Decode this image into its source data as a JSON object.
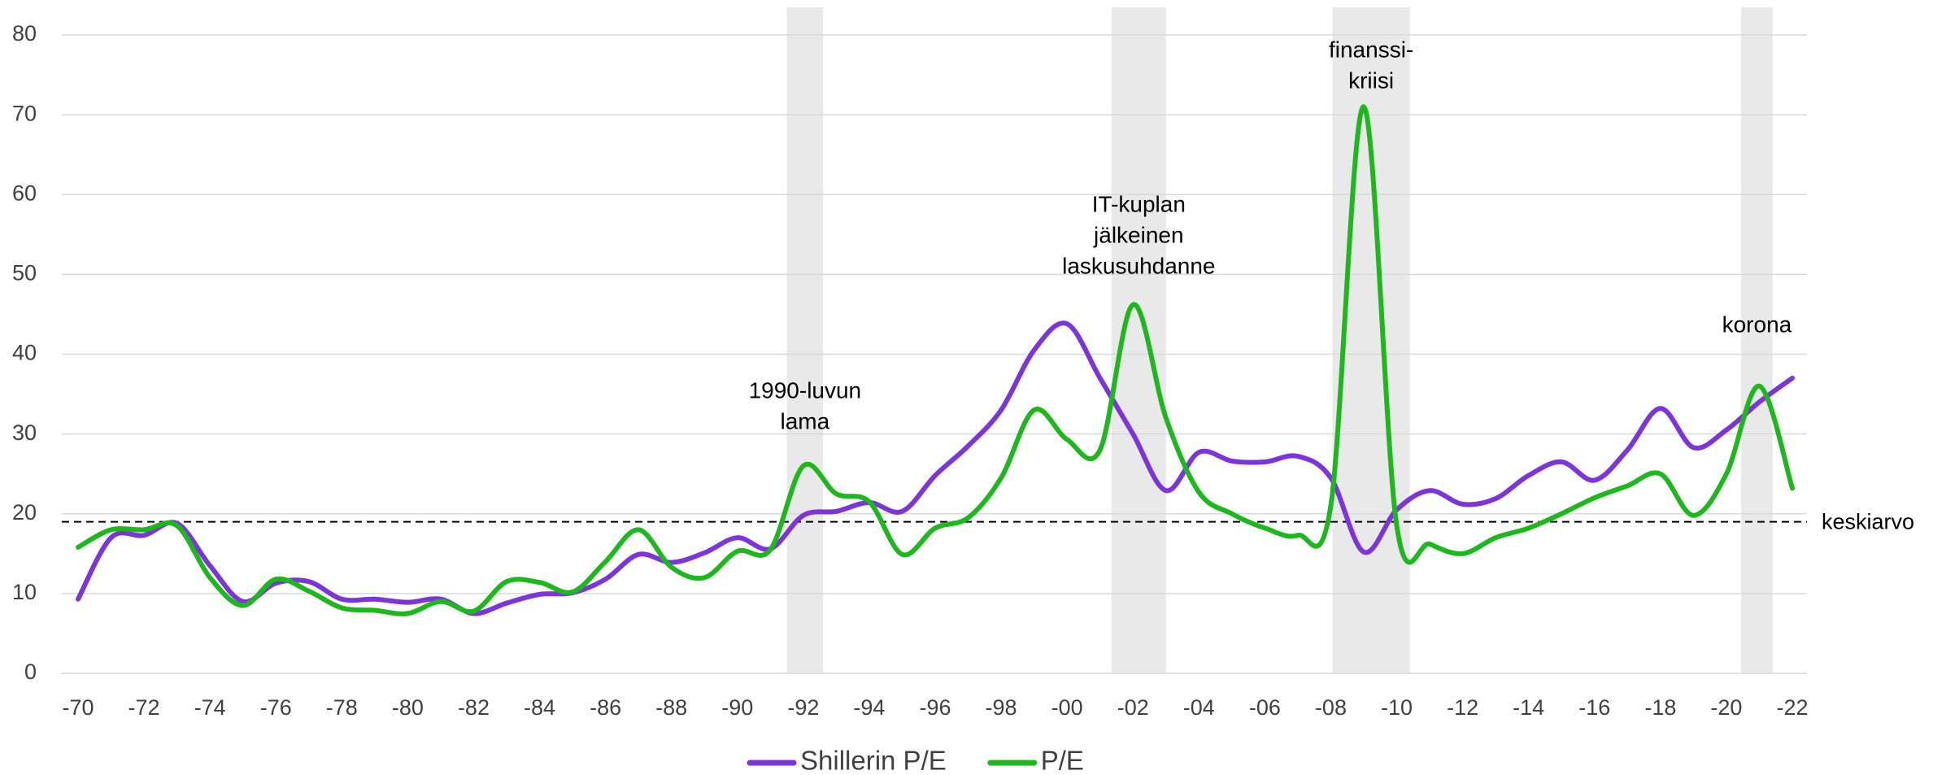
{
  "chart_data": {
    "type": "line",
    "x": [
      1970,
      1971,
      1972,
      1973,
      1974,
      1975,
      1976,
      1977,
      1978,
      1979,
      1980,
      1981,
      1982,
      1983,
      1984,
      1985,
      1986,
      1987,
      1988,
      1989,
      1990,
      1991,
      1992,
      1993,
      1994,
      1995,
      1996,
      1997,
      1998,
      1999,
      2000,
      2001,
      2002,
      2003,
      2004,
      2005,
      2006,
      2007,
      2008,
      2009,
      2010,
      2011,
      2012,
      2013,
      2014,
      2015,
      2016,
      2017,
      2018,
      2019,
      2020,
      2021,
      2022
    ],
    "series": [
      {
        "name": "Shillerin P/E",
        "color": "#7b35d9",
        "values": [
          9.3,
          17,
          17.3,
          18.8,
          13.5,
          9,
          11.3,
          11.5,
          9.3,
          9.3,
          8.9,
          9.3,
          7.5,
          8.8,
          9.9,
          10.1,
          11.8,
          14.9,
          13.9,
          15.1,
          17,
          15.6,
          19.8,
          20.3,
          21.4,
          20.3,
          24.8,
          28.5,
          33,
          40.5,
          43.8,
          37,
          30,
          22.9,
          27.7,
          26.6,
          26.5,
          27.2,
          24.5,
          15.2,
          20.5,
          22.9,
          21.2,
          21.9,
          24.8,
          26.5,
          24.2,
          28,
          33.2,
          28.3,
          30.5,
          34,
          37
        ]
      },
      {
        "name": "P/E",
        "color": "#1eb81e",
        "values": [
          15.8,
          18,
          18,
          18.5,
          12,
          8.5,
          11.8,
          10.3,
          8.2,
          7.9,
          7.5,
          9,
          7.8,
          11.5,
          11.4,
          10.2,
          14,
          18,
          13.3,
          12,
          15.3,
          15.5,
          26,
          22.5,
          21.5,
          14.9,
          18.2,
          19.5,
          24.5,
          33,
          29.3,
          28,
          46.2,
          32,
          22.7,
          20,
          18.2,
          17.3,
          21,
          71,
          18.5,
          16.2,
          15,
          17,
          18.2,
          20,
          22,
          23.5,
          25,
          19.8,
          25,
          36,
          23.2
        ]
      }
    ],
    "average": {
      "value": 19,
      "label": "keskiarvo"
    },
    "shaded_regions": [
      {
        "start": 1991.5,
        "end": 1992.6,
        "label": [
          "1990-luvun",
          "lama"
        ]
      },
      {
        "start": 2001.35,
        "end": 2003,
        "label": [
          "IT-kuplan",
          "jälkeinen",
          "laskusuhdanne"
        ]
      },
      {
        "start": 2008.05,
        "end": 2010.4,
        "label": [
          "finanssi-",
          "kriisi"
        ]
      },
      {
        "start": 2020.45,
        "end": 2021.4,
        "label": [
          "korona"
        ]
      }
    ],
    "xlim": [
      1970,
      2022
    ],
    "xticks": [
      {
        "value": 1970,
        "label": "-70"
      },
      {
        "value": 1972,
        "label": "-72"
      },
      {
        "value": 1974,
        "label": "-74"
      },
      {
        "value": 1976,
        "label": "-76"
      },
      {
        "value": 1978,
        "label": "-78"
      },
      {
        "value": 1980,
        "label": "-80"
      },
      {
        "value": 1982,
        "label": "-82"
      },
      {
        "value": 1984,
        "label": "-84"
      },
      {
        "value": 1986,
        "label": "-86"
      },
      {
        "value": 1988,
        "label": "-88"
      },
      {
        "value": 1990,
        "label": "-90"
      },
      {
        "value": 1992,
        "label": "-92"
      },
      {
        "value": 1994,
        "label": "-94"
      },
      {
        "value": 1996,
        "label": "-96"
      },
      {
        "value": 1998,
        "label": "-98"
      },
      {
        "value": 2000,
        "label": "-00"
      },
      {
        "value": 2002,
        "label": "-02"
      },
      {
        "value": 2004,
        "label": "-04"
      },
      {
        "value": 2006,
        "label": "-06"
      },
      {
        "value": 2008,
        "label": "-08"
      },
      {
        "value": 2010,
        "label": "-10"
      },
      {
        "value": 2012,
        "label": "-12"
      },
      {
        "value": 2014,
        "label": "-14"
      },
      {
        "value": 2016,
        "label": "-16"
      },
      {
        "value": 2018,
        "label": "-18"
      },
      {
        "value": 2020,
        "label": "-20"
      },
      {
        "value": 2022,
        "label": "-22"
      }
    ],
    "ylim": [
      0,
      80
    ],
    "yticks": [
      0,
      10,
      20,
      30,
      40,
      50,
      60,
      70,
      80
    ],
    "grid": true,
    "legend": "bottom"
  }
}
